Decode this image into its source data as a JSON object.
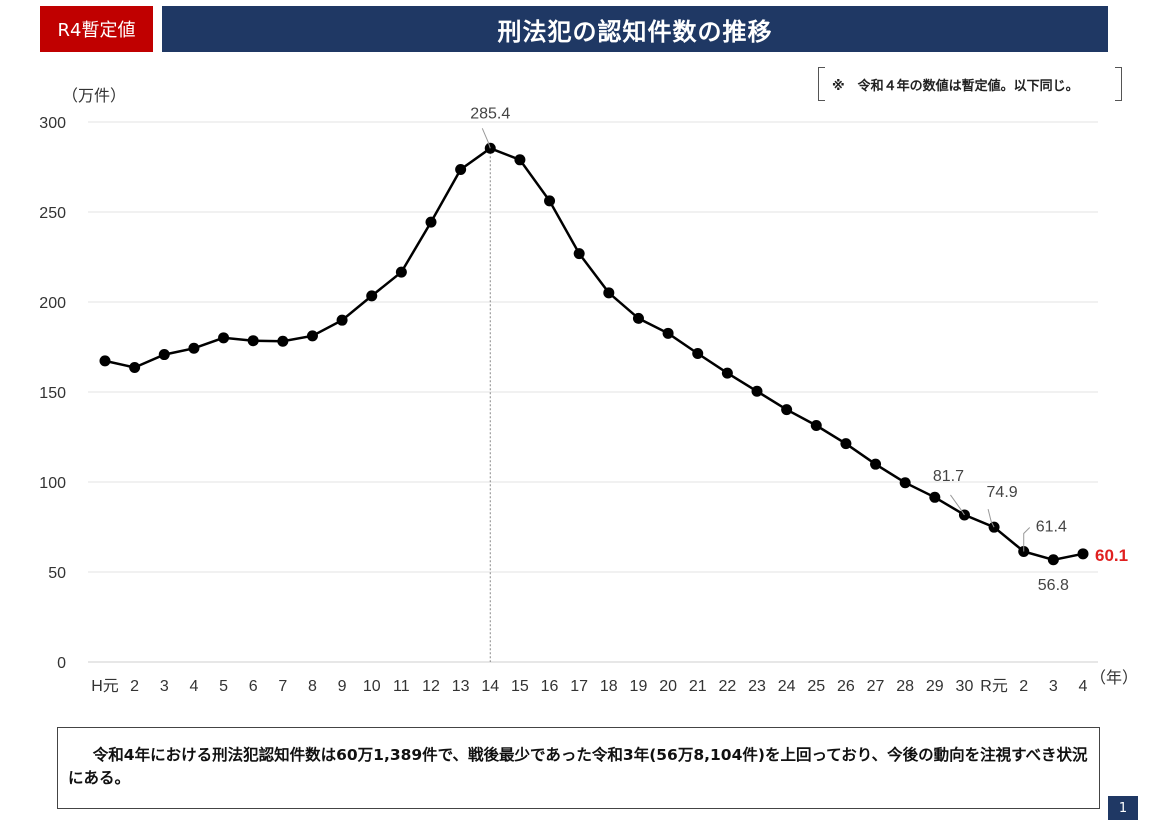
{
  "header": {
    "badge": "R4暫定値",
    "title": "刑法犯の認知件数の推移",
    "note": "※　令和４年の数値は暫定値。以下同じ。"
  },
  "summary": "令和4年における刑法犯認知件数は60万1,389件で、戦後最少であった令和3年(56万8,104件)を上回っており、今後の動向を注視すべき状況にある。",
  "page_number": "1",
  "colors": {
    "badge": "#c00000",
    "title_bar": "#1f3864",
    "line": "#000000",
    "highlight_label": "#e02020",
    "grid": "#e3e3e3"
  },
  "chart_data": {
    "type": "line",
    "title": "刑法犯の認知件数の推移",
    "ylabel": "（万件）",
    "xlabel": "（年）",
    "ylim": [
      0,
      300
    ],
    "yticks": [
      0,
      50,
      100,
      150,
      200,
      250,
      300
    ],
    "grid": true,
    "categories": [
      "H元",
      "2",
      "3",
      "4",
      "5",
      "6",
      "7",
      "8",
      "9",
      "10",
      "11",
      "12",
      "13",
      "14",
      "15",
      "16",
      "17",
      "18",
      "19",
      "20",
      "21",
      "22",
      "23",
      "24",
      "25",
      "26",
      "27",
      "28",
      "29",
      "30",
      "R元",
      "2",
      "3",
      "4"
    ],
    "series": [
      {
        "values": [
          167.3,
          163.6,
          170.8,
          174.3,
          180.1,
          178.5,
          178.2,
          181.2,
          189.9,
          203.4,
          216.6,
          244.4,
          273.6,
          285.4,
          279.0,
          256.2,
          226.9,
          205.1,
          190.9,
          182.6,
          171.4,
          160.5,
          150.4,
          140.2,
          131.4,
          121.3,
          109.9,
          99.6,
          91.5,
          81.7,
          74.9,
          61.4,
          56.8,
          60.1
        ]
      }
    ],
    "data_labels": [
      {
        "index": 13,
        "text": "285.4"
      },
      {
        "index": 29,
        "text": "81.7"
      },
      {
        "index": 30,
        "text": "74.9"
      },
      {
        "index": 31,
        "text": "61.4"
      },
      {
        "index": 32,
        "text": "56.8"
      },
      {
        "index": 33,
        "text": "60.1",
        "highlight": true
      }
    ],
    "reference_line_index": 13
  }
}
